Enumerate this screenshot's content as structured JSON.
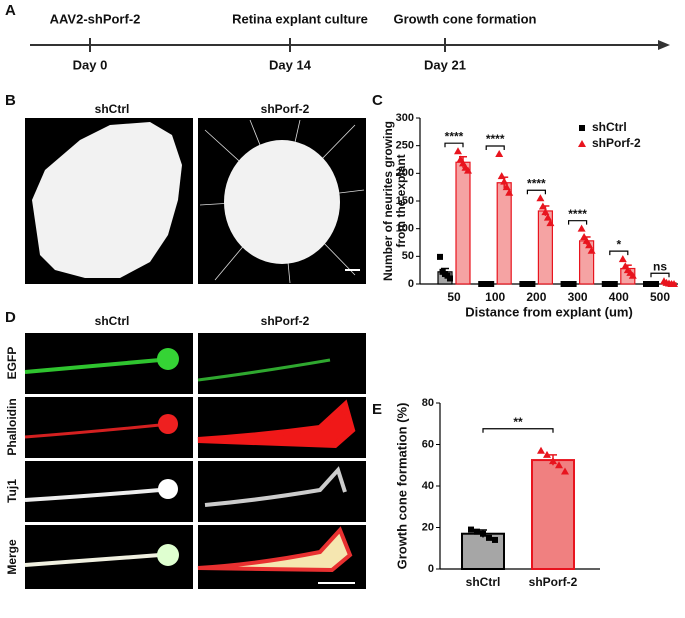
{
  "panel_labels": [
    "A",
    "B",
    "C",
    "D",
    "E"
  ],
  "timeline": {
    "events": [
      {
        "label": "AAV2-shPorf-2",
        "day": "Day 0"
      },
      {
        "label": "Retina explant culture",
        "day": "Day 14"
      },
      {
        "label": "Growth cone formation",
        "day": "Day 21"
      }
    ]
  },
  "panel_b": {
    "columns": [
      "shCtrl",
      "shPorf-2"
    ]
  },
  "panel_d": {
    "columns": [
      "shCtrl",
      "shPorf-2"
    ],
    "rows": [
      "EGFP",
      "Phalloidin",
      "Tuj1",
      "Merge"
    ]
  },
  "chart_data": [
    {
      "type": "grouped_bar",
      "categories": [
        50,
        100,
        200,
        300,
        400,
        500
      ],
      "xlabel": "Distance from explant (um)",
      "ylabel": [
        "Number of neurites growing",
        "from the explant"
      ],
      "ylim": [
        0,
        300
      ],
      "yticks": [
        0,
        50,
        100,
        150,
        200,
        250,
        300
      ],
      "legend": "upper right",
      "series": [
        {
          "name": "shCtrl",
          "color": "#a6a6a6",
          "edge_color": "#000000",
          "marker": "square",
          "marker_color": "#000000",
          "values": [
            22,
            0,
            0,
            0,
            0,
            0
          ],
          "errors": [
            6,
            0,
            0,
            0,
            0,
            0
          ],
          "points": [
            [
              49,
              22,
              18,
              15,
              10
            ],
            [
              0,
              0,
              0,
              0,
              0
            ],
            [
              0,
              0,
              0,
              0,
              0
            ],
            [
              0,
              0,
              0,
              0,
              0
            ],
            [
              0,
              0,
              0,
              0,
              0
            ],
            [
              0,
              0,
              0,
              0,
              0
            ]
          ]
        },
        {
          "name": "shPorf-2",
          "color": "#f5a3a3",
          "edge_color": "#e8141e",
          "marker": "triangle",
          "marker_color": "#e8141e",
          "values": [
            220,
            183,
            132,
            78,
            28,
            2
          ],
          "errors": [
            10,
            10,
            9,
            7,
            6,
            1
          ],
          "points": [
            [
              240,
              225,
              218,
              210,
              205
            ],
            [
              235,
              195,
              185,
              175,
              165
            ],
            [
              155,
              140,
              130,
              120,
              110
            ],
            [
              100,
              85,
              78,
              70,
              60
            ],
            [
              45,
              32,
              25,
              20,
              15
            ],
            [
              5,
              2,
              1,
              0,
              0
            ]
          ]
        }
      ],
      "annotations": [
        "****",
        "****",
        "****",
        "****",
        "*",
        "ns"
      ]
    },
    {
      "type": "bar",
      "categories": [
        "shCtrl",
        "shPorf-2"
      ],
      "ylabel": "Growth cone formation (%)",
      "ylim": [
        0,
        80
      ],
      "yticks": [
        0,
        20,
        40,
        60,
        80
      ],
      "values": [
        17,
        52.5
      ],
      "errors": [
        1.8,
        2.5
      ],
      "colors": [
        "#a6a6a6",
        "#f08080"
      ],
      "edge_colors": [
        "#000000",
        "#e8141e"
      ],
      "markers": [
        "square",
        "triangle"
      ],
      "marker_colors": [
        "#000000",
        "#e8141e"
      ],
      "points": [
        [
          19,
          18,
          17,
          15,
          14
        ],
        [
          57,
          55,
          52,
          50,
          47
        ]
      ],
      "annotation": "**"
    }
  ]
}
